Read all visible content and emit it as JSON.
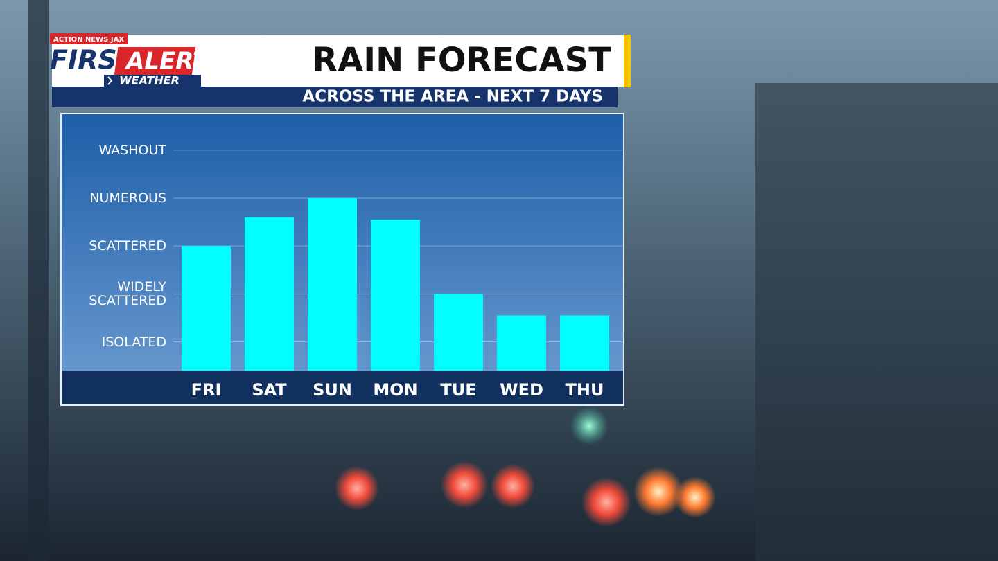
{
  "logo": {
    "top": "ACTION NEWS JAX",
    "first": "FIRST",
    "alert": "ALERT",
    "sub": "WEATHER"
  },
  "chart_data": {
    "type": "bar",
    "title": "RAIN FORECAST",
    "subtitle": "ACROSS THE AREA - NEXT 7 DAYS",
    "categories": [
      "FRI",
      "SAT",
      "SUN",
      "MON",
      "TUE",
      "WED",
      "THU"
    ],
    "values": [
      3.0,
      3.6,
      4.0,
      3.55,
      2.0,
      1.55,
      1.55
    ],
    "color": "#00ffff",
    "ylim": [
      0.4,
      5.75
    ],
    "yticks": [
      {
        "value": 1,
        "label": "ISOLATED"
      },
      {
        "value": 2,
        "label": "WIDELY SCATTERED"
      },
      {
        "value": 3,
        "label": "SCATTERED"
      },
      {
        "value": 4,
        "label": "NUMEROUS"
      },
      {
        "value": 5,
        "label": "WASHOUT"
      }
    ],
    "grid": true
  }
}
